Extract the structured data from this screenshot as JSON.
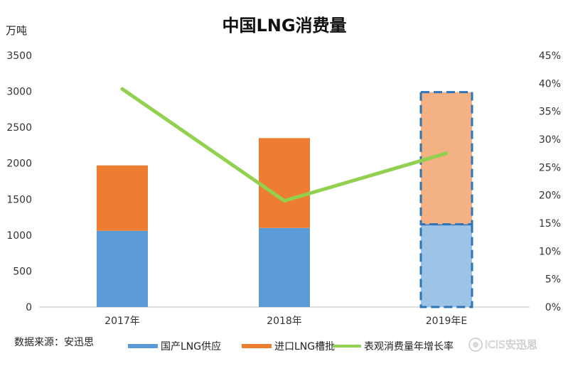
{
  "chart_data": {
    "type": "bar",
    "title": "中国LNG消费量",
    "y_left_unit": "万吨",
    "categories": [
      "2017年",
      "2018年",
      "2019年E"
    ],
    "stacked": true,
    "series": [
      {
        "name": "国产LNG供应",
        "values": [
          1060,
          1100,
          1150
        ],
        "color": "#5b9bd5",
        "color_estimate": "#9dc3e6"
      },
      {
        "name": "进口LNG槽批",
        "values": [
          910,
          1250,
          1840
        ],
        "color": "#ed7d31",
        "color_estimate": "#f4b183"
      }
    ],
    "line_series": {
      "name": "表观消费量年增长率",
      "values": [
        39,
        19,
        27.5
      ],
      "color": "#92d050",
      "axis": "right"
    },
    "estimate_categories": [
      "2019年E"
    ],
    "y_left": {
      "min": 0,
      "max": 3500,
      "ticks": [
        "0",
        "500",
        "1000",
        "1500",
        "2000",
        "2500",
        "3000",
        "3500"
      ]
    },
    "y_right": {
      "min": 0,
      "max": 45,
      "ticks": [
        "0%",
        "5%",
        "10%",
        "15%",
        "20%",
        "25%",
        "30%",
        "35%",
        "40%",
        "45%"
      ]
    },
    "grid": false,
    "legend_position": "bottom"
  },
  "source_note": "数据来源：安迅思",
  "watermark": "ICIS安迅思"
}
